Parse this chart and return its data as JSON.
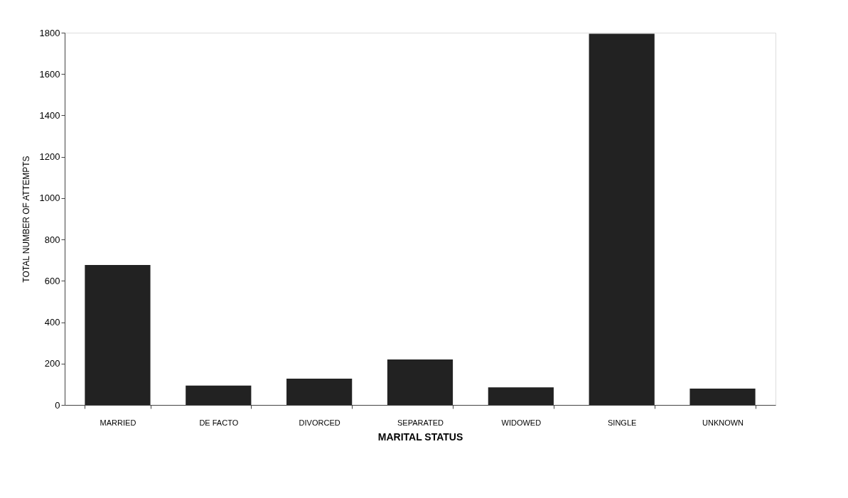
{
  "chart_data": {
    "type": "bar",
    "xlabel": "MARITAL STATUS",
    "ylabel": "TOTAL NUMBER OF ATTEMPTS",
    "categories": [
      "MARRIED",
      "DE FACTO",
      "DIVORCED",
      "SEPARATED",
      "WIDOWED",
      "SINGLE",
      "UNKNOWN"
    ],
    "values": [
      677,
      94,
      127,
      220,
      85,
      1795,
      79
    ],
    "color": "#222222",
    "ylim": [
      0,
      1800
    ],
    "yticks": [
      0,
      200,
      400,
      600,
      800,
      1000,
      1200,
      1400,
      1600,
      1800
    ],
    "grid": false
  }
}
